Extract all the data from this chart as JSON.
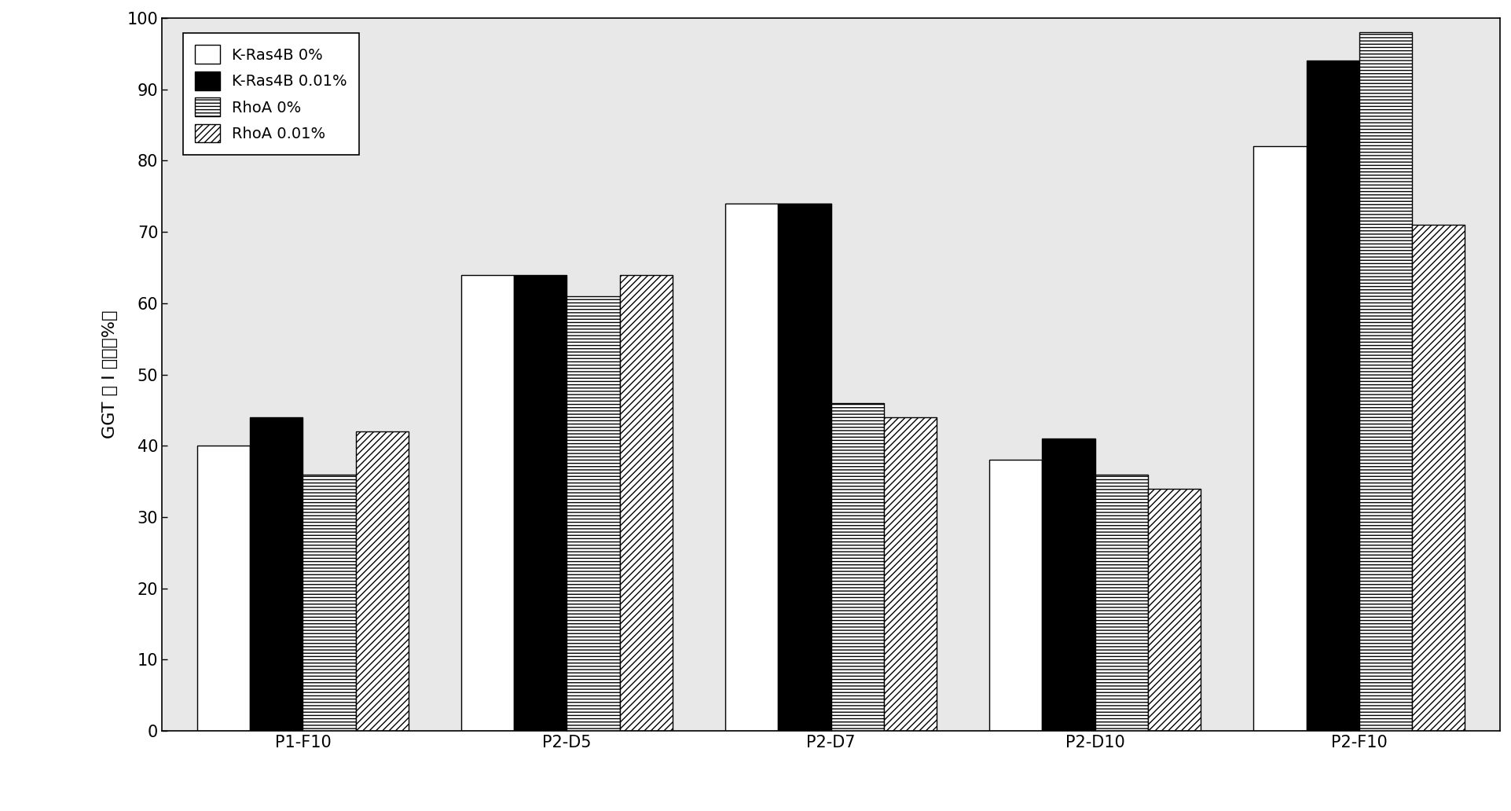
{
  "categories": [
    "P1-F10",
    "P2-D5",
    "P2-D7",
    "P2-D10",
    "P2-F10"
  ],
  "series": {
    "K-Ras4B 0%": [
      40,
      64,
      74,
      38,
      82
    ],
    "K-Ras4B 0.01%": [
      44,
      64,
      74,
      41,
      94
    ],
    "RhoA 0%": [
      36,
      61,
      46,
      36,
      98
    ],
    "RhoA 0.01%": [
      42,
      64,
      44,
      34,
      71
    ]
  },
  "ylabel": "GGT 酶 I 活性（%）",
  "ylim": [
    0,
    100
  ],
  "yticks": [
    0,
    10,
    20,
    30,
    40,
    50,
    60,
    70,
    80,
    90,
    100
  ],
  "legend_labels": [
    "K-Ras4B 0%",
    "K-Ras4B 0.01%",
    "RhoA 0%",
    "RhoA 0.01%"
  ],
  "bar_width": 0.15,
  "group_positions": [
    0.25,
    1.0,
    1.75,
    2.5,
    3.25
  ],
  "background_color": "#ffffff",
  "plot_bg_color": "#e8e8e8",
  "hatch_patterns": [
    "",
    "....",
    "----",
    "////"
  ],
  "bar_facecolors": [
    "white",
    "black",
    "white",
    "white"
  ],
  "bar_edgecolors": [
    "black",
    "black",
    "black",
    "black"
  ],
  "bar_linewidth": 1.0,
  "xlim": [
    -0.15,
    3.65
  ],
  "title_fontsize": 16,
  "tick_fontsize": 15,
  "ylabel_fontsize": 16,
  "legend_fontsize": 14
}
